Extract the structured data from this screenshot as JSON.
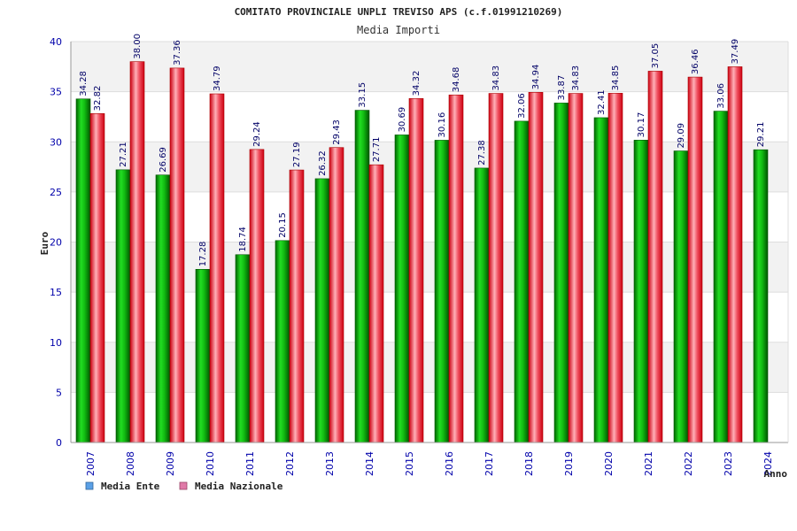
{
  "chart_data": {
    "type": "bar",
    "title": "COMITATO PROVINCIALE UNPLI TREVISO APS (c.f.01991210269)",
    "subtitle": "Media Importi",
    "xlabel": "Anno",
    "ylabel": "Euro",
    "ylim": [
      0,
      40
    ],
    "yticks": [
      0,
      5,
      10,
      15,
      20,
      25,
      30,
      35,
      40
    ],
    "grid": true,
    "legend_position": "bottom-left",
    "categories": [
      "2007",
      "2008",
      "2009",
      "2010",
      "2011",
      "2012",
      "2013",
      "2014",
      "2015",
      "2016",
      "2017",
      "2018",
      "2019",
      "2020",
      "2021",
      "2022",
      "2023",
      "2024"
    ],
    "series": [
      {
        "name": "Media Ente",
        "color": "#00aa00",
        "legend_color": "#5aa0e6",
        "values": [
          34.28,
          27.21,
          26.69,
          17.28,
          18.74,
          20.15,
          26.32,
          33.15,
          30.69,
          30.16,
          27.38,
          32.06,
          33.87,
          32.41,
          30.17,
          29.09,
          33.06,
          29.21
        ],
        "labels": [
          "34.28",
          "27.21",
          "26.69",
          "17.28",
          "18.74",
          "20.15",
          "26.32",
          "33.15",
          "30.69",
          "30.16",
          "27.38",
          "32.06",
          "33.87",
          "32.41",
          "30.17",
          "29.09",
          "33.06",
          "29.21"
        ]
      },
      {
        "name": "Media Nazionale",
        "color": "#ee1122",
        "legend_color": "#e07aa8",
        "values": [
          32.82,
          38.0,
          37.36,
          34.79,
          29.24,
          27.19,
          29.43,
          27.71,
          34.32,
          34.68,
          34.83,
          34.94,
          34.83,
          34.85,
          37.05,
          36.46,
          37.49,
          null
        ],
        "labels": [
          "32.82",
          "38.00",
          "37.36",
          "34.79",
          "29.24",
          "27.19",
          "29.43",
          "27.71",
          "34.32",
          "34.68",
          "34.83",
          "34.94",
          "34.83",
          "34.85",
          "37.05",
          "36.46",
          "37.49",
          ""
        ]
      }
    ]
  }
}
